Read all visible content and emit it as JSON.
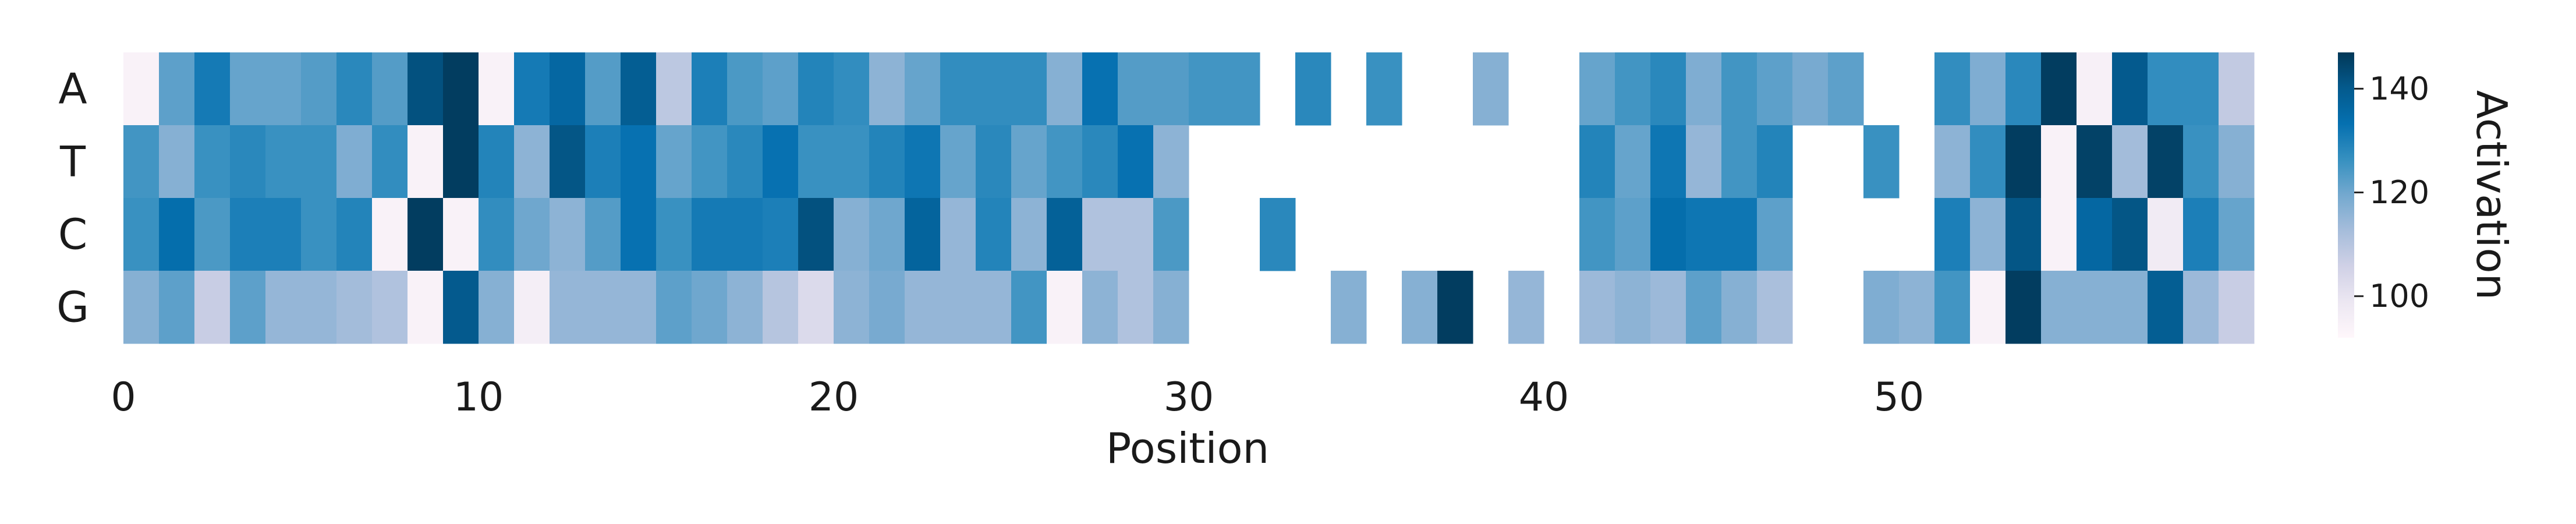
{
  "chart_data": {
    "type": "heatmap",
    "xlabel": "Position",
    "ylabel": "",
    "rows": [
      "A",
      "T",
      "C",
      "G"
    ],
    "x_ticks": [
      0,
      10,
      20,
      30,
      40,
      50
    ],
    "x_range": [
      0,
      59
    ],
    "colorbar": {
      "label": "Activation",
      "ticks": [
        100,
        120,
        140
      ],
      "range": [
        92,
        147
      ]
    },
    "colormap": [
      "#fff7fb",
      "#ece7f2",
      "#d0d1e6",
      "#a6bddb",
      "#74a9cf",
      "#3690c0",
      "#0570b0",
      "#045a8d",
      "#023858"
    ],
    "values": [
      [
        94,
        122,
        131,
        121,
        121,
        123,
        128,
        123,
        142,
        146,
        94,
        131,
        136,
        123,
        139,
        109,
        130,
        124,
        122,
        129,
        127,
        116,
        121,
        127,
        127,
        127,
        117,
        133,
        123,
        123,
        125,
        125,
        null,
        128,
        null,
        126,
        null,
        null,
        117,
        null,
        null,
        121,
        125,
        128,
        118,
        125,
        122,
        119,
        122,
        null,
        null,
        127,
        118,
        128,
        146,
        95,
        140,
        127,
        127,
        108
      ],
      [
        125,
        117,
        126,
        128,
        126,
        126,
        118,
        127,
        94,
        146,
        129,
        116,
        141,
        130,
        133,
        121,
        125,
        128,
        133,
        126,
        126,
        129,
        132,
        121,
        128,
        121,
        125,
        128,
        133,
        116,
        null,
        null,
        null,
        null,
        null,
        null,
        null,
        null,
        null,
        null,
        null,
        129,
        121,
        132,
        115,
        125,
        129,
        null,
        null,
        126,
        null,
        116,
        127,
        146,
        94,
        145,
        113,
        145,
        126,
        117
      ],
      [
        126,
        134,
        124,
        130,
        130,
        126,
        129,
        94,
        146,
        94,
        127,
        120,
        116,
        123,
        133,
        126,
        131,
        131,
        130,
        142,
        117,
        120,
        137,
        115,
        129,
        116,
        138,
        111,
        111,
        124,
        null,
        null,
        128,
        null,
        null,
        null,
        null,
        null,
        null,
        null,
        null,
        125,
        122,
        134,
        132,
        132,
        122,
        null,
        null,
        null,
        null,
        130,
        116,
        141,
        94,
        136,
        141,
        97,
        130,
        121
      ],
      [
        117,
        122,
        107,
        122,
        115,
        115,
        113,
        111,
        94,
        140,
        117,
        96,
        115,
        115,
        115,
        122,
        120,
        116,
        110,
        103,
        116,
        119,
        115,
        115,
        115,
        125,
        94,
        116,
        111,
        117,
        null,
        null,
        null,
        null,
        117,
        null,
        117,
        146,
        null,
        115,
        null,
        114,
        116,
        114,
        122,
        117,
        112,
        null,
        null,
        118,
        116,
        125,
        94,
        146,
        117,
        117,
        117,
        139,
        114,
        107
      ]
    ]
  }
}
